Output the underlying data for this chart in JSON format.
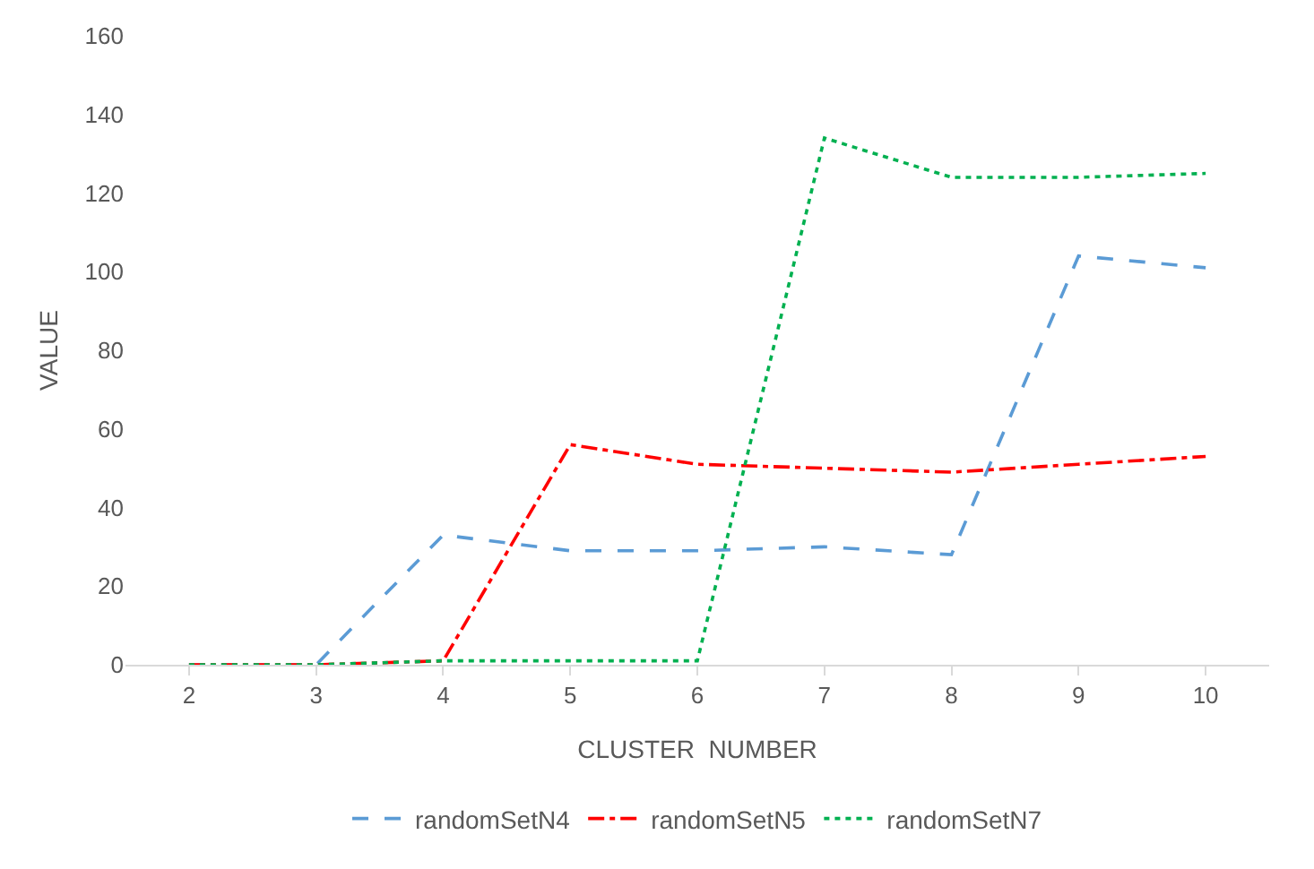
{
  "chart_data": {
    "type": "line",
    "xlabel": "CLUSTER  NUMBER",
    "ylabel": "VALUE",
    "categories": [
      "2",
      "3",
      "4",
      "5",
      "6",
      "7",
      "8",
      "9",
      "10"
    ],
    "series": [
      {
        "name": "randomSetN4",
        "color": "#5b9bd5",
        "line_style": "dashed",
        "values": [
          0,
          0,
          33,
          29,
          29,
          30,
          28,
          104,
          101
        ]
      },
      {
        "name": "randomSetN5",
        "color": "#ff0000",
        "line_style": "dashdot",
        "values": [
          0,
          0,
          1,
          56,
          51,
          50,
          49,
          51,
          53
        ]
      },
      {
        "name": "randomSetN7",
        "color": "#00b050",
        "line_style": "dotted",
        "values": [
          0,
          0,
          1,
          1,
          1,
          134,
          124,
          124,
          125
        ]
      }
    ],
    "ylim": [
      0,
      160
    ],
    "yticks": [
      0,
      20,
      40,
      60,
      80,
      100,
      120,
      140,
      160
    ],
    "grid": false,
    "legend": "bottom",
    "marker": "none"
  }
}
